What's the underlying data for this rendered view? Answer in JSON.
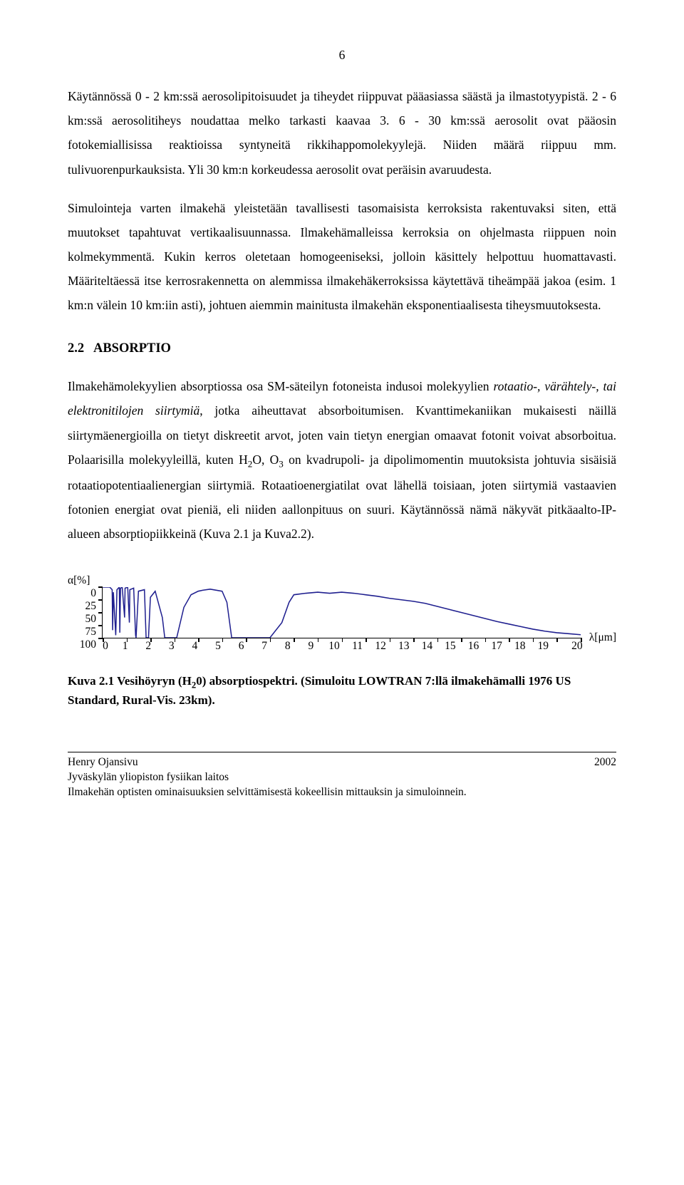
{
  "page_number": "6",
  "paragraphs": {
    "p1": "Käytännössä 0 - 2 km:ssä aerosolipitoisuudet ja tiheydet riippuvat pääasiassa säästä ja ilmastotyypistä. 2 - 6 km:ssä aerosolitiheys noudattaa melko tarkasti kaavaa 3. 6 - 30 km:ssä aerosolit ovat pääosin fotokemiallisissa reaktioissa syntyneitä rikkihappomolekyylejä. Niiden määrä riippuu mm. tulivuorenpurkauksista. Yli 30 km:n korkeudessa aerosolit ovat peräisin avaruudesta.",
    "p2": "Simulointeja varten ilmakehä yleistetään tavallisesti tasomaisista kerroksista rakentuvaksi siten, että muutokset tapahtuvat vertikaalisuunnassa. Ilmakehämalleissa kerroksia on ohjelmasta riippuen noin kolmekymmentä. Kukin kerros oletetaan homogeeniseksi, jolloin käsittely helpottuu huomattavasti. Määriteltäessä itse kerrosrakennetta on alemmissa ilmakehäkerroksissa käytettävä tiheämpää jakoa (esim. 1 km:n välein 10 km:iin asti), johtuen aiemmin mainitusta ilmakehän eksponentiaalisesta tiheysmuutoksesta.",
    "p3_pre": "Ilmakehämolekyylien absorptiossa osa SM-säteilyn fotoneista indusoi molekyylien ",
    "p3_em": "rotaatio-, värähtely-, tai elektronitilojen siirtymiä",
    "p3_post1": ", jotka aiheuttavat absorboitumisen. Kvanttimekaniikan mukaisesti näillä siirtymäenergioilla on tietyt diskreetit arvot, joten vain tietyn energian omaavat fotonit voivat absorboitua. Polaarisilla molekyyleillä, kuten H",
    "p3_post2": "O, O",
    "p3_post3": " on kvadrupoli- ja dipolimomentin muutoksista johtuvia sisäisiä rotaatiopotentiaalienergian siirtymiä. Rotaatioenergiatilat ovat lähellä toisiaan, joten siirtymiä vastaavien fotonien energiat ovat pieniä, eli niiden aallonpituus on suuri. Käytännössä nämä näkyvät pitkäaalto-IP-alueen absorptiopiikkeinä (Kuva 2.1 ja Kuva2.2)."
  },
  "section": {
    "num": "2.2",
    "title": "ABSORPTIO"
  },
  "chart": {
    "type": "line",
    "y_label": "α[%]",
    "x_label": "λ[μm]",
    "y_ticks": [
      "0",
      "25",
      "50",
      "75",
      "100"
    ],
    "x_ticks": [
      "0",
      "1",
      "2",
      "3",
      "4",
      "5",
      "6",
      "7",
      "8",
      "9",
      "10",
      "11",
      "12",
      "13",
      "14",
      "15",
      "16",
      "17",
      "18",
      "19",
      "20"
    ],
    "xlim": [
      0,
      20
    ],
    "ylim_display": [
      0,
      100
    ],
    "line_color": "#1f1f8f",
    "line_width": 1.6,
    "axis_color": "#000000",
    "background_color": "#ffffff",
    "series": [
      {
        "x": 0.0,
        "y": 0
      },
      {
        "x": 0.3,
        "y": 0
      },
      {
        "x": 0.4,
        "y": 5
      },
      {
        "x": 0.42,
        "y": 85
      },
      {
        "x": 0.45,
        "y": 10
      },
      {
        "x": 0.55,
        "y": 95
      },
      {
        "x": 0.6,
        "y": 5
      },
      {
        "x": 0.7,
        "y": 0
      },
      {
        "x": 0.72,
        "y": 90
      },
      {
        "x": 0.75,
        "y": 2
      },
      {
        "x": 0.82,
        "y": 0
      },
      {
        "x": 0.92,
        "y": 60
      },
      {
        "x": 0.94,
        "y": 2
      },
      {
        "x": 1.05,
        "y": 0
      },
      {
        "x": 1.12,
        "y": 70
      },
      {
        "x": 1.14,
        "y": 5
      },
      {
        "x": 1.3,
        "y": 2
      },
      {
        "x": 1.38,
        "y": 95
      },
      {
        "x": 1.4,
        "y": 100
      },
      {
        "x": 1.5,
        "y": 8
      },
      {
        "x": 1.75,
        "y": 5
      },
      {
        "x": 1.82,
        "y": 100
      },
      {
        "x": 1.92,
        "y": 100
      },
      {
        "x": 2.0,
        "y": 20
      },
      {
        "x": 2.2,
        "y": 8
      },
      {
        "x": 2.5,
        "y": 60
      },
      {
        "x": 2.6,
        "y": 100
      },
      {
        "x": 2.9,
        "y": 100
      },
      {
        "x": 3.1,
        "y": 100
      },
      {
        "x": 3.4,
        "y": 40
      },
      {
        "x": 3.7,
        "y": 15
      },
      {
        "x": 4.0,
        "y": 8
      },
      {
        "x": 4.2,
        "y": 6
      },
      {
        "x": 4.5,
        "y": 4
      },
      {
        "x": 5.0,
        "y": 8
      },
      {
        "x": 5.2,
        "y": 30
      },
      {
        "x": 5.4,
        "y": 100
      },
      {
        "x": 5.8,
        "y": 100
      },
      {
        "x": 6.4,
        "y": 100
      },
      {
        "x": 7.0,
        "y": 100
      },
      {
        "x": 7.5,
        "y": 70
      },
      {
        "x": 7.8,
        "y": 30
      },
      {
        "x": 8.0,
        "y": 15
      },
      {
        "x": 8.5,
        "y": 12
      },
      {
        "x": 9.0,
        "y": 10
      },
      {
        "x": 9.5,
        "y": 12
      },
      {
        "x": 10.0,
        "y": 10
      },
      {
        "x": 10.5,
        "y": 12
      },
      {
        "x": 11.0,
        "y": 15
      },
      {
        "x": 11.5,
        "y": 18
      },
      {
        "x": 12.0,
        "y": 22
      },
      {
        "x": 12.5,
        "y": 25
      },
      {
        "x": 13.0,
        "y": 28
      },
      {
        "x": 13.5,
        "y": 32
      },
      {
        "x": 14.0,
        "y": 38
      },
      {
        "x": 14.5,
        "y": 44
      },
      {
        "x": 15.0,
        "y": 50
      },
      {
        "x": 15.5,
        "y": 56
      },
      {
        "x": 16.0,
        "y": 62
      },
      {
        "x": 16.5,
        "y": 68
      },
      {
        "x": 17.0,
        "y": 73
      },
      {
        "x": 17.5,
        "y": 78
      },
      {
        "x": 18.0,
        "y": 83
      },
      {
        "x": 18.5,
        "y": 87
      },
      {
        "x": 19.0,
        "y": 90
      },
      {
        "x": 19.5,
        "y": 92
      },
      {
        "x": 20.0,
        "y": 94
      }
    ]
  },
  "caption_strong_1": "Kuva 2.1 Vesihöyryn (H",
  "caption_strong_2": "0) absorptiospektri. (Simuloitu LOWTRAN 7:llä ilmakehämalli 1976 US Standard, Rural-Vis. 23km).",
  "footer": {
    "author": "Henry Ojansivu",
    "dept": "Jyväskylän yliopiston fysiikan laitos",
    "thesis": "Ilmakehän optisten ominaisuuksien selvittämisestä kokeellisin mittauksin ja simuloinnein.",
    "year": "2002"
  }
}
